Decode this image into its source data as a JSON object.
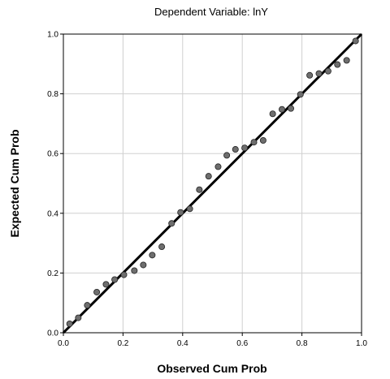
{
  "chart_data": {
    "type": "scatter",
    "title": "Dependent Variable: lnY",
    "xlabel": "Observed Cum Prob",
    "ylabel": "Expected Cum Prob",
    "xlim": [
      0.0,
      1.0
    ],
    "ylim": [
      0.0,
      1.0
    ],
    "x_ticks": [
      "0.0",
      "0.2",
      "0.4",
      "0.6",
      "0.8",
      "1.0"
    ],
    "y_ticks": [
      "0.0",
      "0.2",
      "0.4",
      "0.6",
      "0.8",
      "1.0"
    ],
    "grid": true,
    "reference_line": {
      "from": [
        0.0,
        0.0
      ],
      "to": [
        1.0,
        1.0
      ]
    },
    "points": [
      {
        "x": 0.021,
        "y": 0.03
      },
      {
        "x": 0.05,
        "y": 0.05
      },
      {
        "x": 0.08,
        "y": 0.092
      },
      {
        "x": 0.112,
        "y": 0.136
      },
      {
        "x": 0.143,
        "y": 0.162
      },
      {
        "x": 0.172,
        "y": 0.178
      },
      {
        "x": 0.203,
        "y": 0.194
      },
      {
        "x": 0.238,
        "y": 0.208
      },
      {
        "x": 0.268,
        "y": 0.227
      },
      {
        "x": 0.298,
        "y": 0.26
      },
      {
        "x": 0.33,
        "y": 0.288
      },
      {
        "x": 0.363,
        "y": 0.366
      },
      {
        "x": 0.393,
        "y": 0.403
      },
      {
        "x": 0.424,
        "y": 0.415
      },
      {
        "x": 0.456,
        "y": 0.479
      },
      {
        "x": 0.487,
        "y": 0.524
      },
      {
        "x": 0.519,
        "y": 0.556
      },
      {
        "x": 0.548,
        "y": 0.594
      },
      {
        "x": 0.577,
        "y": 0.614
      },
      {
        "x": 0.608,
        "y": 0.619
      },
      {
        "x": 0.639,
        "y": 0.638
      },
      {
        "x": 0.67,
        "y": 0.644
      },
      {
        "x": 0.702,
        "y": 0.733
      },
      {
        "x": 0.733,
        "y": 0.748
      },
      {
        "x": 0.763,
        "y": 0.751
      },
      {
        "x": 0.795,
        "y": 0.798
      },
      {
        "x": 0.826,
        "y": 0.862
      },
      {
        "x": 0.857,
        "y": 0.868
      },
      {
        "x": 0.888,
        "y": 0.876
      },
      {
        "x": 0.919,
        "y": 0.898
      },
      {
        "x": 0.95,
        "y": 0.912
      },
      {
        "x": 0.98,
        "y": 0.977
      }
    ]
  }
}
